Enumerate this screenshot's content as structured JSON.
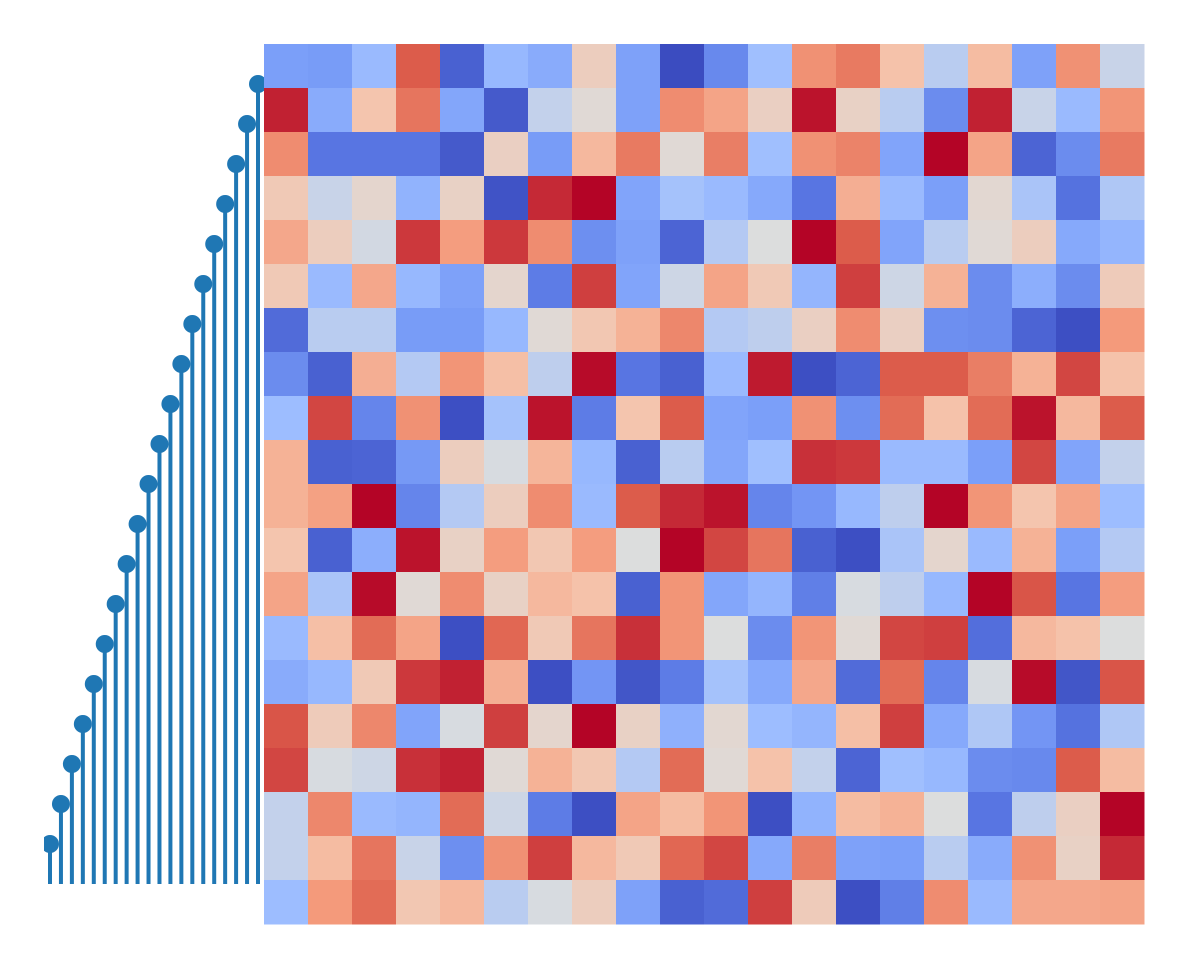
{
  "chart_data": [
    {
      "type": "stem",
      "color": "#1f77b4",
      "x": [
        0,
        1,
        2,
        3,
        4,
        5,
        6,
        7,
        8,
        9,
        10,
        11,
        12,
        13,
        14,
        15,
        16,
        17,
        18,
        19
      ],
      "values": [
        1,
        2,
        3,
        4,
        5,
        6,
        7,
        8,
        9,
        10,
        11,
        12,
        13,
        14,
        15,
        16,
        17,
        18,
        19,
        20
      ],
      "xlim": [
        0,
        19
      ],
      "ylim": [
        0,
        20
      ]
    },
    {
      "type": "heatmap",
      "colormap": "coolwarm",
      "zlim": [
        0,
        1
      ],
      "values": [
        [
          0.25,
          0.24,
          0.36,
          0.88,
          0.06,
          0.35,
          0.3,
          0.58,
          0.26,
          0.0,
          0.18,
          0.38,
          0.77,
          0.82,
          0.63,
          0.43,
          0.65,
          0.26,
          0.77,
          0.46
        ],
        [
          0.96,
          0.3,
          0.62,
          0.83,
          0.28,
          0.04,
          0.45,
          0.52,
          0.26,
          0.78,
          0.72,
          0.57,
          0.98,
          0.56,
          0.43,
          0.19,
          0.96,
          0.46,
          0.36,
          0.76
        ],
        [
          0.78,
          0.12,
          0.12,
          0.12,
          0.04,
          0.57,
          0.24,
          0.66,
          0.82,
          0.52,
          0.81,
          0.38,
          0.77,
          0.8,
          0.27,
          1.0,
          0.72,
          0.07,
          0.19,
          0.82
        ],
        [
          0.6,
          0.46,
          0.54,
          0.33,
          0.56,
          0.02,
          0.95,
          1.0,
          0.27,
          0.39,
          0.36,
          0.29,
          0.12,
          0.69,
          0.36,
          0.25,
          0.53,
          0.4,
          0.11,
          0.41
        ],
        [
          0.71,
          0.58,
          0.48,
          0.93,
          0.74,
          0.93,
          0.78,
          0.2,
          0.26,
          0.07,
          0.42,
          0.5,
          1.0,
          0.88,
          0.27,
          0.43,
          0.52,
          0.58,
          0.29,
          0.34
        ],
        [
          0.6,
          0.36,
          0.71,
          0.35,
          0.26,
          0.54,
          0.14,
          0.92,
          0.27,
          0.47,
          0.72,
          0.6,
          0.34,
          0.92,
          0.47,
          0.68,
          0.19,
          0.31,
          0.19,
          0.59
        ],
        [
          0.09,
          0.43,
          0.43,
          0.24,
          0.24,
          0.35,
          0.52,
          0.61,
          0.68,
          0.79,
          0.42,
          0.44,
          0.57,
          0.78,
          0.57,
          0.2,
          0.19,
          0.07,
          0.01,
          0.75
        ],
        [
          0.19,
          0.06,
          0.69,
          0.42,
          0.76,
          0.64,
          0.44,
          0.99,
          0.12,
          0.06,
          0.36,
          0.97,
          0.01,
          0.07,
          0.88,
          0.88,
          0.81,
          0.68,
          0.91,
          0.63
        ],
        [
          0.37,
          0.91,
          0.17,
          0.77,
          0.01,
          0.39,
          0.98,
          0.14,
          0.62,
          0.88,
          0.27,
          0.25,
          0.77,
          0.2,
          0.85,
          0.63,
          0.85,
          0.98,
          0.66,
          0.88
        ],
        [
          0.68,
          0.06,
          0.07,
          0.23,
          0.58,
          0.49,
          0.67,
          0.35,
          0.06,
          0.43,
          0.28,
          0.38,
          0.94,
          0.93,
          0.36,
          0.36,
          0.25,
          0.91,
          0.27,
          0.45
        ],
        [
          0.68,
          0.73,
          1.0,
          0.17,
          0.42,
          0.58,
          0.78,
          0.36,
          0.88,
          0.95,
          0.98,
          0.17,
          0.22,
          0.35,
          0.44,
          1.0,
          0.76,
          0.62,
          0.72,
          0.37
        ],
        [
          0.62,
          0.06,
          0.31,
          0.98,
          0.56,
          0.74,
          0.61,
          0.74,
          0.5,
          1.0,
          0.91,
          0.83,
          0.06,
          0.01,
          0.4,
          0.54,
          0.36,
          0.68,
          0.25,
          0.42
        ],
        [
          0.72,
          0.4,
          0.99,
          0.52,
          0.78,
          0.56,
          0.66,
          0.63,
          0.06,
          0.76,
          0.28,
          0.34,
          0.15,
          0.49,
          0.44,
          0.35,
          1.0,
          0.89,
          0.12,
          0.74
        ],
        [
          0.36,
          0.64,
          0.85,
          0.72,
          0.01,
          0.86,
          0.6,
          0.83,
          0.94,
          0.76,
          0.5,
          0.19,
          0.76,
          0.52,
          0.91,
          0.92,
          0.1,
          0.66,
          0.63,
          0.5
        ],
        [
          0.3,
          0.35,
          0.6,
          0.93,
          0.96,
          0.69,
          0.01,
          0.22,
          0.03,
          0.14,
          0.39,
          0.29,
          0.71,
          0.09,
          0.85,
          0.17,
          0.49,
          0.99,
          0.03,
          0.89
        ],
        [
          0.89,
          0.59,
          0.79,
          0.27,
          0.49,
          0.92,
          0.54,
          1.0,
          0.56,
          0.32,
          0.53,
          0.37,
          0.34,
          0.64,
          0.92,
          0.29,
          0.41,
          0.22,
          0.11,
          0.41
        ],
        [
          0.91,
          0.49,
          0.47,
          0.94,
          0.96,
          0.52,
          0.68,
          0.61,
          0.42,
          0.85,
          0.52,
          0.63,
          0.45,
          0.07,
          0.38,
          0.35,
          0.19,
          0.18,
          0.88,
          0.65
        ],
        [
          0.45,
          0.79,
          0.36,
          0.34,
          0.85,
          0.47,
          0.14,
          0.01,
          0.72,
          0.65,
          0.76,
          0.01,
          0.33,
          0.65,
          0.68,
          0.5,
          0.12,
          0.44,
          0.57,
          1.0
        ],
        [
          0.45,
          0.65,
          0.83,
          0.46,
          0.2,
          0.77,
          0.92,
          0.66,
          0.6,
          0.86,
          0.91,
          0.29,
          0.81,
          0.26,
          0.25,
          0.43,
          0.3,
          0.77,
          0.56,
          0.95
        ],
        [
          0.37,
          0.75,
          0.85,
          0.61,
          0.66,
          0.43,
          0.49,
          0.58,
          0.26,
          0.06,
          0.09,
          0.92,
          0.59,
          0.01,
          0.15,
          0.78,
          0.36,
          0.71,
          0.71,
          0.72
        ]
      ]
    }
  ]
}
